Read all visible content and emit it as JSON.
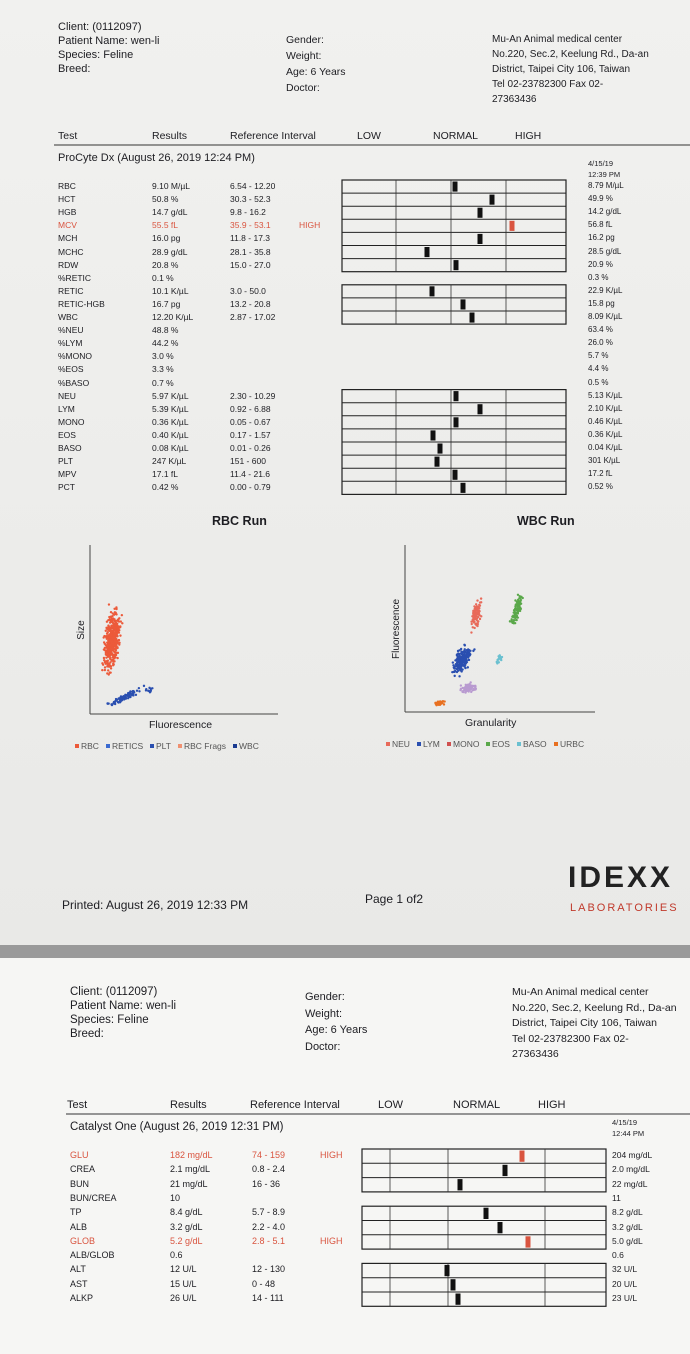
{
  "page1": {
    "header": {
      "client": "Client: (0112097)",
      "patient": "Patient Name: wen-li",
      "species": "Species: Feline",
      "breed": "Breed:",
      "gender": "Gender:",
      "weight": "Weight:",
      "age": "Age: 6 Years",
      "doctor": "Doctor:",
      "clinic": [
        "Mu-An Animal medical center",
        "No.220, Sec.2, Keelung Rd., Da-an",
        "District, Taipei City 106, Taiwan",
        "Tel 02-23782300 Fax 02-",
        "27363436"
      ]
    },
    "columns": [
      "Test",
      "Results",
      "Reference Interval",
      "LOW",
      "NORMAL",
      "HIGH"
    ],
    "section": "ProCyte Dx (August 26, 2019 12:24 PM)",
    "previous_date": [
      "4/15/19",
      "12:39 PM"
    ],
    "rows": [
      [
        "RBC",
        "9.10 M/µL",
        "6.54 - 12.20",
        "",
        "8.79 M/µL"
      ],
      [
        "HCT",
        "50.8 %",
        "30.3 - 52.3",
        "",
        "49.9 %"
      ],
      [
        "HGB",
        "14.7 g/dL",
        "9.8 - 16.2",
        "",
        "14.2 g/dL"
      ],
      [
        "MCV",
        "55.5 fL",
        "35.9 - 53.1",
        "HIGH",
        "56.8 fL"
      ],
      [
        "MCH",
        "16.0 pg",
        "11.8 - 17.3",
        "",
        "16.2 pg"
      ],
      [
        "MCHC",
        "28.9 g/dL",
        "28.1 - 35.8",
        "",
        "28.5 g/dL"
      ],
      [
        "RDW",
        "20.8 %",
        "15.0 - 27.0",
        "",
        "20.9 %"
      ],
      [
        "%RETIC",
        "0.1 %",
        "",
        "",
        "0.3 %"
      ],
      [
        "RETIC",
        "10.1 K/µL",
        "3.0 - 50.0",
        "",
        "22.9 K/µL"
      ],
      [
        "RETIC-HGB",
        "16.7 pg",
        "13.2 - 20.8",
        "",
        "15.8 pg"
      ],
      [
        "WBC",
        "12.20 K/µL",
        "2.87 - 17.02",
        "",
        "8.09 K/µL"
      ],
      [
        "%NEU",
        "48.8 %",
        "",
        "",
        "63.4 %"
      ],
      [
        "%LYM",
        "44.2 %",
        "",
        "",
        "26.0 %"
      ],
      [
        "%MONO",
        "3.0 %",
        "",
        "",
        "5.7 %"
      ],
      [
        "%EOS",
        "3.3 %",
        "",
        "",
        "4.4 %"
      ],
      [
        "%BASO",
        "0.7 %",
        "",
        "",
        "0.5 %"
      ],
      [
        "NEU",
        "5.97 K/µL",
        "2.30 - 10.29",
        "",
        "5.13 K/µL"
      ],
      [
        "LYM",
        "5.39 K/µL",
        "0.92 - 6.88",
        "",
        "2.10 K/µL"
      ],
      [
        "MONO",
        "0.36 K/µL",
        "0.05 - 0.67",
        "",
        "0.46 K/µL"
      ],
      [
        "EOS",
        "0.40 K/µL",
        "0.17 - 1.57",
        "",
        "0.36 K/µL"
      ],
      [
        "BASO",
        "0.08 K/µL",
        "0.01 - 0.26",
        "",
        "0.04 K/µL"
      ],
      [
        "PLT",
        "247 K/µL",
        "151 - 600",
        "",
        "301 K/µL"
      ],
      [
        "MPV",
        "17.1 fL",
        "11.4 - 21.6",
        "",
        "17.2 fL"
      ],
      [
        "PCT",
        "0.42 %",
        "0.00 - 0.79",
        "",
        "0.52 %"
      ]
    ],
    "rbc_plot": {
      "title": "RBC Run",
      "y_label": "Size",
      "x_label": "Fluorescence",
      "legend": [
        "RBC",
        "RETICS",
        "PLT",
        "RBC Frags",
        "WBC"
      ]
    },
    "wbc_plot": {
      "title": "WBC Run",
      "y_label": "Fluorescence",
      "x_label": "Granularity",
      "legend": [
        "NEU",
        "LYM",
        "MONO",
        "EOS",
        "BASO",
        "URBC"
      ]
    },
    "footer": {
      "printed": "Printed: August 26, 2019 12:33 PM",
      "page": "Page 1 of2",
      "logo": "IDEXX",
      "logo_sub": "LABORATORIES"
    }
  },
  "page2": {
    "header": {
      "client": "Client: (0112097)",
      "patient": "Patient Name: wen-li",
      "species": "Species: Feline",
      "breed": "Breed:",
      "gender": "Gender:",
      "weight": "Weight:",
      "age": "Age: 6 Years",
      "doctor": "Doctor:",
      "clinic": [
        "Mu-An Animal medical center",
        "No.220, Sec.2, Keelung Rd., Da-an",
        "District, Taipei City 106, Taiwan",
        "Tel 02-23782300 Fax 02-",
        "27363436"
      ]
    },
    "columns": [
      "Test",
      "Results",
      "Reference Interval",
      "LOW",
      "NORMAL",
      "HIGH"
    ],
    "section": "Catalyst One (August 26, 2019 12:31 PM)",
    "previous_date": [
      "4/15/19",
      "12:44 PM"
    ],
    "rows": [
      [
        "GLU",
        "182 mg/dL",
        "74 - 159",
        "HIGH",
        "204 mg/dL"
      ],
      [
        "CREA",
        "2.1 mg/dL",
        "0.8 - 2.4",
        "",
        "2.0 mg/dL"
      ],
      [
        "BUN",
        "21 mg/dL",
        "16 - 36",
        "",
        "22 mg/dL"
      ],
      [
        "BUN/CREA",
        "10",
        "",
        "",
        "11"
      ],
      [
        "TP",
        "8.4 g/dL",
        "5.7 - 8.9",
        "",
        "8.2 g/dL"
      ],
      [
        "ALB",
        "3.2 g/dL",
        "2.2 - 4.0",
        "",
        "3.2 g/dL"
      ],
      [
        "GLOB",
        "5.2 g/dL",
        "2.8 - 5.1",
        "HIGH",
        "5.0 g/dL"
      ],
      [
        "ALB/GLOB",
        "0.6",
        "",
        "",
        "0.6"
      ],
      [
        "ALT",
        "12 U/L",
        "12 - 130",
        "",
        "32 U/L"
      ],
      [
        "AST",
        "15 U/L",
        "0 - 48",
        "",
        "20 U/L"
      ],
      [
        "ALKP",
        "26 U/L",
        "14 - 111",
        "",
        "23 U/L"
      ]
    ]
  }
}
